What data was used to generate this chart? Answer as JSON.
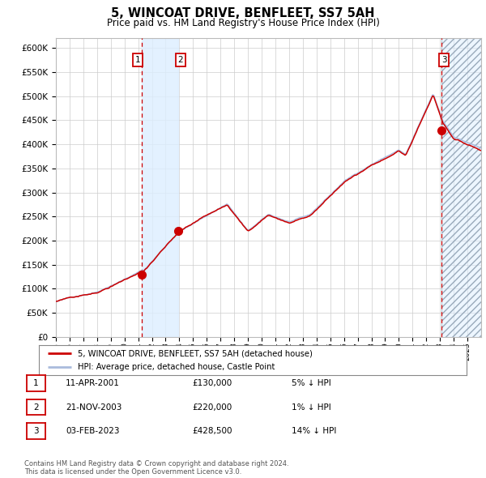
{
  "title": "5, WINCOAT DRIVE, BENFLEET, SS7 5AH",
  "subtitle": "Price paid vs. HM Land Registry's House Price Index (HPI)",
  "legend_label_red": "5, WINCOAT DRIVE, BENFLEET, SS7 5AH (detached house)",
  "legend_label_blue": "HPI: Average price, detached house, Castle Point",
  "ylim": [
    0,
    620000
  ],
  "yticks": [
    0,
    50000,
    100000,
    150000,
    200000,
    250000,
    300000,
    350000,
    400000,
    450000,
    500000,
    550000,
    600000
  ],
  "ytick_labels": [
    "£0",
    "£50K",
    "£100K",
    "£150K",
    "£200K",
    "£250K",
    "£300K",
    "£350K",
    "£400K",
    "£450K",
    "£500K",
    "£550K",
    "£600K"
  ],
  "sale_times": [
    2001.27,
    2003.89,
    2023.09
  ],
  "sale_prices": [
    130000,
    220000,
    428500
  ],
  "sale_labels": [
    "1",
    "2",
    "3"
  ],
  "table_rows": [
    [
      "1",
      "11-APR-2001",
      "£130,000",
      "5% ↓ HPI"
    ],
    [
      "2",
      "21-NOV-2003",
      "£220,000",
      "1% ↓ HPI"
    ],
    [
      "3",
      "03-FEB-2023",
      "£428,500",
      "14% ↓ HPI"
    ]
  ],
  "footnote": "Contains HM Land Registry data © Crown copyright and database right 2024.\nThis data is licensed under the Open Government Licence v3.0.",
  "background_color": "#ffffff",
  "plot_bg_color": "#ffffff",
  "grid_color": "#cccccc",
  "red_line_color": "#cc0000",
  "blue_line_color": "#aabbdd",
  "sale_marker_color": "#cc0000",
  "vline_color": "#cc0000",
  "shade_color": "#ddeeff",
  "start_year": 1995,
  "end_year": 2026
}
